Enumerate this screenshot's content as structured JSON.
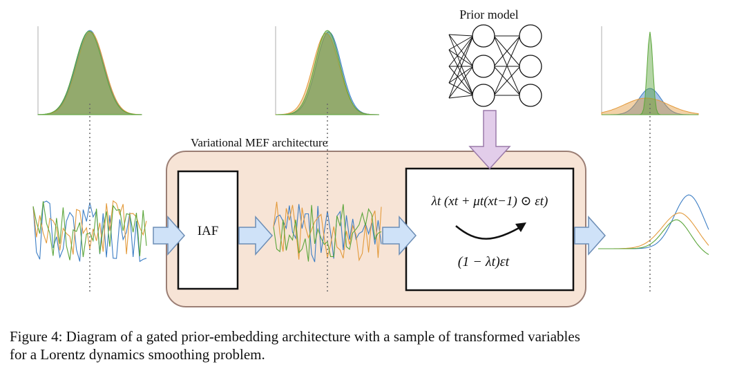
{
  "labels": {
    "prior_model": "Prior model",
    "architecture": "Variational MEF architecture",
    "iaf": "IAF",
    "gate_top": "λt (xt + μt(xt−1) ⊙ εt)",
    "gate_bottom": "(1 − λt)εt"
  },
  "caption": {
    "line1": "Figure 4: Diagram of a gated prior-embedding architecture with a sample of transformed variables",
    "line2": "for a Lorentz dynamics smoothing problem."
  },
  "colors": {
    "blue": "#3b7dc4",
    "orange": "#e39a3b",
    "green": "#5aa53a",
    "arch_fill": "#f7e4d6",
    "arch_stroke": "#9b7e74",
    "arrow_blue": "#cfe2f8",
    "arrow_blue_stroke": "#6c8db5",
    "arrow_purple": "#e2cdea",
    "arrow_purple_stroke": "#9a7aa9"
  }
}
